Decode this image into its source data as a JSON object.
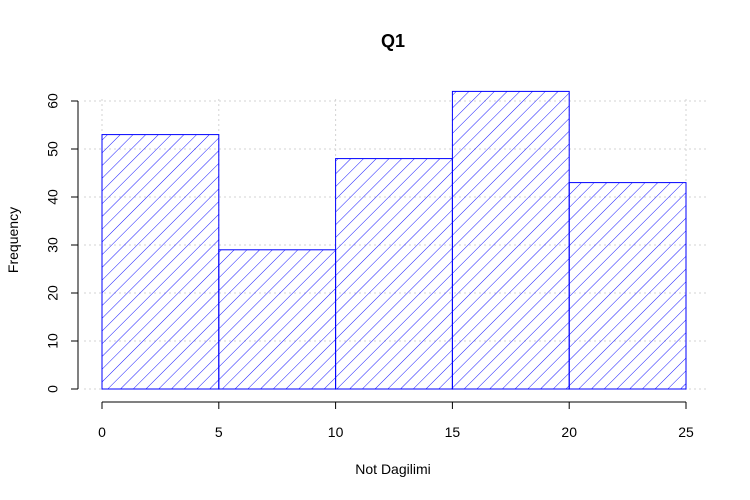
{
  "chart_data": {
    "type": "bar",
    "title": "Q1",
    "xlabel": "Not Dagilimi",
    "ylabel": "Frequency",
    "bins": [
      [
        0,
        5
      ],
      [
        5,
        10
      ],
      [
        10,
        15
      ],
      [
        15,
        20
      ],
      [
        20,
        25
      ]
    ],
    "values": [
      53,
      29,
      48,
      62,
      43
    ],
    "xlim": [
      0,
      25
    ],
    "ylim": [
      0,
      60
    ],
    "x_ticks": [
      0,
      5,
      10,
      15,
      20,
      25
    ],
    "y_ticks": [
      0,
      10,
      20,
      30,
      40,
      50,
      60
    ],
    "grid": true,
    "fill_pattern": "diagonal-hatch",
    "colors": {
      "bar": "#0000ff",
      "grid": "#d3d3d3",
      "axis": "#000000"
    }
  }
}
